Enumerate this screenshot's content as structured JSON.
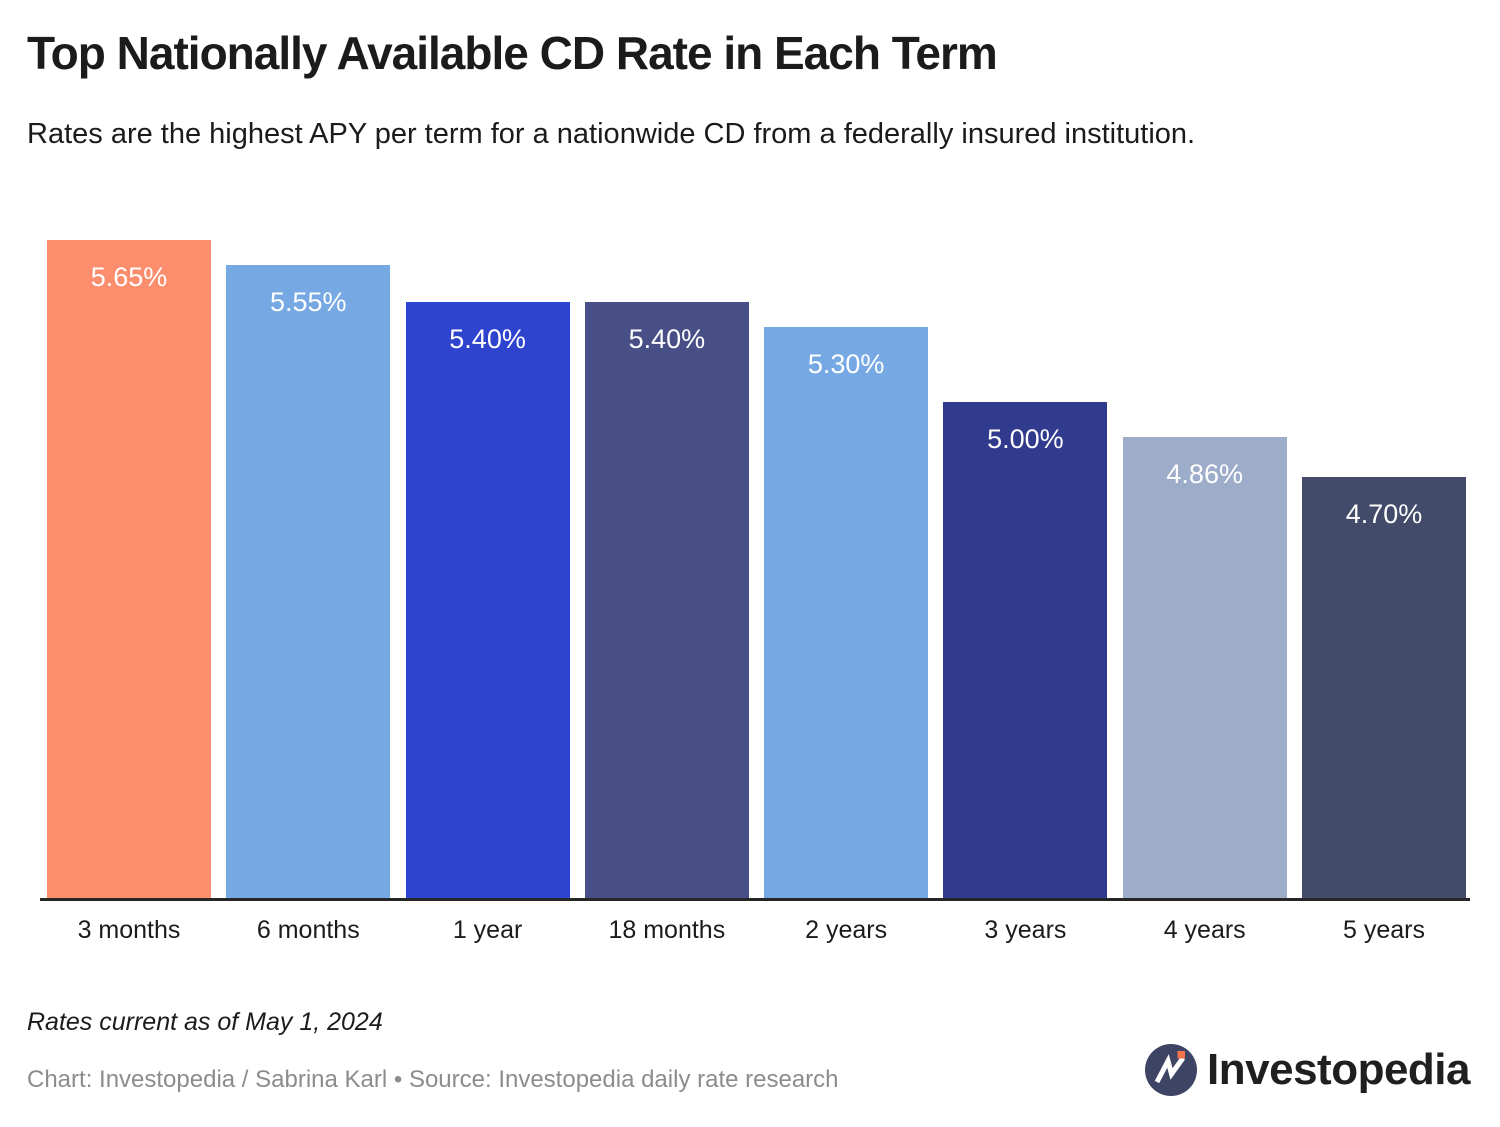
{
  "page": {
    "title": "Top Nationally Available CD Rate in Each Term",
    "subtitle": "Rates are the highest APY per term for a nationwide CD from a federally insured institution.",
    "footnote": "Rates current as of May 1, 2024",
    "credit": "Chart: Investopedia / Sabrina Karl • Source: Investopedia daily rate research",
    "logo_text": "Investopedia"
  },
  "colors": {
    "title_text": "#1b1b1b",
    "credit_text": "#8c8c8c",
    "axis_line": "#262626",
    "value_label_text": "#ffffff",
    "logo_circle": "#3d4464",
    "logo_accent": "#f4744e"
  },
  "chart_data": {
    "type": "bar",
    "title": "Top Nationally Available CD Rate in Each Term",
    "subtitle": "Rates are the highest APY per term for a nationwide CD from a federally insured institution.",
    "categories": [
      "3 months",
      "6 months",
      "1 year",
      "18 months",
      "2 years",
      "3 years",
      "4 years",
      "5 years"
    ],
    "values": [
      5.65,
      5.55,
      5.4,
      5.4,
      5.3,
      5.0,
      4.86,
      4.7
    ],
    "value_labels": [
      "5.65%",
      "5.55%",
      "5.40%",
      "5.40%",
      "5.30%",
      "5.00%",
      "4.86%",
      "4.70%"
    ],
    "bar_colors": [
      "#fc8d6d",
      "#76a9e3",
      "#2e43ce",
      "#474f86",
      "#76a9e3",
      "#303b8e",
      "#9dacc8",
      "#424b69"
    ],
    "xlabel": "",
    "ylabel": "",
    "ylim": [
      3.0,
      5.75
    ],
    "grid": false,
    "legend": false,
    "value_label_position": "inside-top",
    "annotation": "Rates current as of May 1, 2024"
  }
}
